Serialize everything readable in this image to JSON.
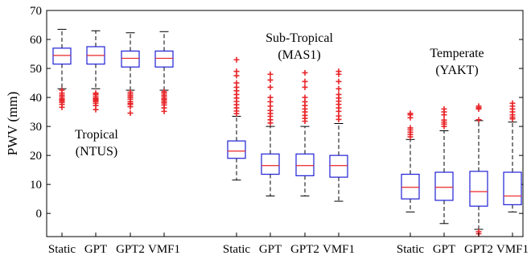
{
  "chart_data": {
    "type": "box",
    "ylabel": "PWV (mm)",
    "ylim": [
      -8,
      70
    ],
    "yticks": [
      0,
      10,
      20,
      30,
      40,
      50,
      60,
      70
    ],
    "grid": false,
    "colors": {
      "box": "#1f1fd6",
      "median": "#e8262a",
      "outlier": "#e8262a",
      "whisker": "#000000"
    },
    "groups": [
      {
        "label_lines": [
          "Tropical",
          "(NTUS)"
        ],
        "boxes": [
          {
            "category": "Static",
            "min": 43,
            "q1": 51.5,
            "median": 54.5,
            "q3": 57,
            "max": 63.5,
            "outliers": [
              42.5,
              41.5,
              40.8,
              40.2,
              39.6,
              39.2,
              38.8,
              38.3,
              37.6,
              36.6
            ]
          },
          {
            "category": "GPT",
            "min": 43,
            "q1": 51.5,
            "median": 54.5,
            "q3": 57.5,
            "max": 63,
            "outliers": [
              41.5,
              41,
              40.4,
              39.8,
              39.4,
              39,
              38.6,
              38,
              37.2,
              35.8
            ]
          },
          {
            "category": "GPT2",
            "min": 42.5,
            "q1": 50.5,
            "median": 53.5,
            "q3": 56,
            "max": 62.3,
            "outliers": [
              41.8,
              41.2,
              40.6,
              40,
              39.4,
              38.6,
              38,
              37.6,
              36.8,
              34.6
            ]
          },
          {
            "category": "VMF1",
            "min": 42.5,
            "q1": 50.5,
            "median": 53.5,
            "q3": 56,
            "max": 62.7,
            "outliers": [
              42,
              41.5,
              40.8,
              40.2,
              39.6,
              39.2,
              38.6,
              38.1,
              37.4,
              36.4,
              35.2
            ]
          }
        ]
      },
      {
        "label_lines": [
          "Sub-Tropical",
          "(MAS1)"
        ],
        "boxes": [
          {
            "category": "Static",
            "min": 11.5,
            "q1": 19,
            "median": 21.5,
            "q3": 25,
            "max": 33.5,
            "outliers": [
              53,
              49,
              47.5,
              45,
              43.5,
              42.3,
              41,
              39.8,
              38.6,
              37.5,
              36.4,
              35.3,
              34.4
            ]
          },
          {
            "category": "GPT",
            "min": 6,
            "q1": 13.5,
            "median": 16.5,
            "q3": 20.5,
            "max": 30,
            "outliers": [
              48,
              46,
              43.5,
              40,
              38.5,
              37,
              35.5,
              34.5,
              33.5,
              32.3,
              31.2
            ]
          },
          {
            "category": "GPT2",
            "min": 6,
            "q1": 13,
            "median": 16.5,
            "q3": 20.5,
            "max": 30,
            "outliers": [
              48.5,
              45.5,
              43.5,
              40,
              38.5,
              37.2,
              36,
              35,
              33.8,
              32.8,
              31.8
            ]
          },
          {
            "category": "VMF1",
            "min": 4.2,
            "q1": 12.5,
            "median": 16.5,
            "q3": 20,
            "max": 31,
            "outliers": [
              49,
              48,
              45.5,
              43,
              41,
              39.8,
              38.7,
              37.6,
              36.4,
              35.2,
              33.6,
              32.4
            ]
          }
        ]
      },
      {
        "label_lines": [
          "Temperate",
          "(YAKT)"
        ],
        "boxes": [
          {
            "category": "Static",
            "min": 0.5,
            "q1": 5,
            "median": 9,
            "q3": 13.5,
            "max": 25.5,
            "outliers": [
              34.5,
              34,
              33,
              29.5,
              28.8,
              28,
              27.2,
              26.4
            ]
          },
          {
            "category": "GPT",
            "min": -3.5,
            "q1": 4.5,
            "median": 9,
            "q3": 14.2,
            "max": 28.5,
            "outliers": [
              36,
              35,
              34,
              32.2,
              31.5,
              30.8,
              30
            ]
          },
          {
            "category": "GPT2",
            "min": -5.5,
            "q1": 2.5,
            "median": 7.5,
            "q3": 14.5,
            "max": 32,
            "outliers": [
              37,
              36.5,
              36,
              32.3,
              -6.3,
              -7
            ]
          },
          {
            "category": "VMF1",
            "min": 0.5,
            "q1": 3,
            "median": 6,
            "q3": 14.2,
            "max": 31.5,
            "outliers": [
              38,
              37,
              36,
              35,
              34,
              33.2,
              32.6
            ]
          }
        ]
      }
    ]
  }
}
